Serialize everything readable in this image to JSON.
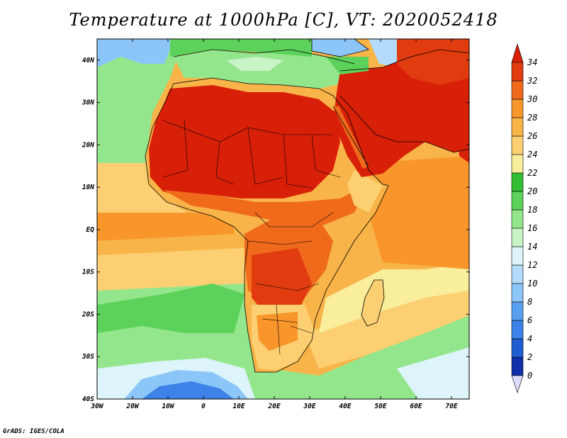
{
  "map": {
    "title": "Temperature at 1000hPa [C], VT: 2020052418",
    "variable": "Temperature",
    "level": "1000hPa",
    "units": "C",
    "valid_time": "2020052418",
    "footer": "GrADS: IGES/COLA",
    "lon_range": [
      -30,
      75
    ],
    "lat_range": [
      -40,
      45
    ],
    "lon_ticks": [
      {
        "value": -30,
        "label": "30W"
      },
      {
        "value": -20,
        "label": "20W"
      },
      {
        "value": -10,
        "label": "10W"
      },
      {
        "value": 0,
        "label": "0"
      },
      {
        "value": 10,
        "label": "10E"
      },
      {
        "value": 20,
        "label": "20E"
      },
      {
        "value": 30,
        "label": "30E"
      },
      {
        "value": 40,
        "label": "40E"
      },
      {
        "value": 50,
        "label": "50E"
      },
      {
        "value": 60,
        "label": "60E"
      },
      {
        "value": 70,
        "label": "70E"
      }
    ],
    "lat_ticks": [
      {
        "value": 40,
        "label": "40N"
      },
      {
        "value": 30,
        "label": "30N"
      },
      {
        "value": 20,
        "label": "20N"
      },
      {
        "value": 10,
        "label": "10N"
      },
      {
        "value": 0,
        "label": "EQ"
      },
      {
        "value": -10,
        "label": "10S"
      },
      {
        "value": -20,
        "label": "20S"
      },
      {
        "value": -30,
        "label": "30S"
      },
      {
        "value": -40,
        "label": "40S"
      }
    ]
  },
  "colorbar": {
    "levels": [
      0,
      2,
      4,
      6,
      8,
      10,
      12,
      14,
      16,
      18,
      20,
      22,
      24,
      26,
      28,
      30,
      32,
      34
    ],
    "colors": [
      "#100070",
      "#1030a8",
      "#1e5ed0",
      "#3c82e8",
      "#5aa0f0",
      "#8cc6f8",
      "#b4dcfa",
      "#dcf4fa",
      "#c8f4c8",
      "#94e68c",
      "#5cd25a",
      "#34be34",
      "#f8ee9c",
      "#fcd072",
      "#f8b448",
      "#f8962c",
      "#f06a1c",
      "#e03c10",
      "#d82008"
    ],
    "under_color": "#dcdcfc",
    "over_color": "#d82008"
  }
}
